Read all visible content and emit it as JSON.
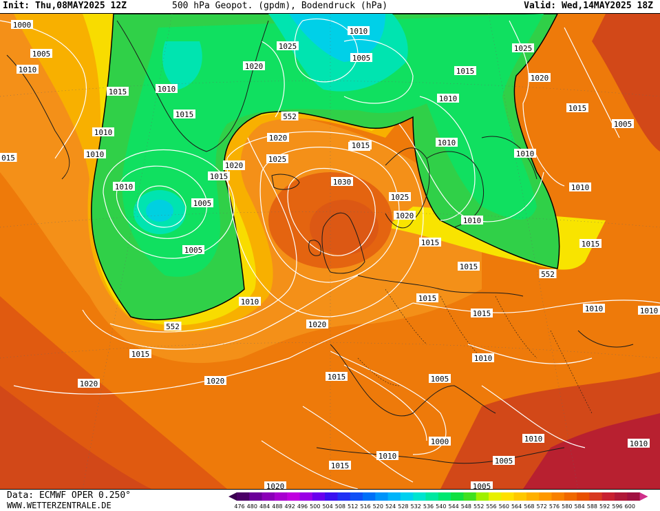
{
  "header": {
    "init": "Init: Thu,08MAY2025 12Z",
    "title": "500 hPa Geopot. (gpdm), Bodendruck (hPa)",
    "valid": "Valid: Wed,14MAY2025 18Z"
  },
  "footer": {
    "data_source": "Data: ECMWF OPER 0.250°",
    "website": "WWW.WETTERZENTRALE.DE"
  },
  "legend": {
    "values": [
      "476",
      "480",
      "484",
      "488",
      "492",
      "496",
      "500",
      "504",
      "508",
      "512",
      "516",
      "520",
      "524",
      "528",
      "532",
      "536",
      "540",
      "544",
      "548",
      "552",
      "556",
      "560",
      "564",
      "568",
      "572",
      "576",
      "580",
      "584",
      "588",
      "592",
      "596",
      "600"
    ],
    "colors": [
      "#4b0066",
      "#6a0099",
      "#8a00b8",
      "#a800d0",
      "#c000e0",
      "#9a00e6",
      "#6a00ee",
      "#3a10f0",
      "#2030f4",
      "#1050f6",
      "#0070f8",
      "#0094fa",
      "#00b4fa",
      "#00d0f0",
      "#00e4d0",
      "#00e8a0",
      "#00e870",
      "#10e040",
      "#40e020",
      "#a0f000",
      "#e8f000",
      "#ffe000",
      "#ffc800",
      "#ffb000",
      "#ff9800",
      "#f88000",
      "#f06800",
      "#e85000",
      "#d83820",
      "#c82030",
      "#b01838",
      "#a01040"
    ]
  },
  "map": {
    "reference_contour": "552",
    "isobar_labels": [
      "1000",
      "1005",
      "1010",
      "1015",
      "1020",
      "1025",
      "1030"
    ]
  },
  "labels": [
    {
      "text": "1000",
      "id": "a"
    },
    {
      "text": "1005",
      "id": "b"
    },
    {
      "text": "1010",
      "id": "c"
    },
    {
      "text": "1015",
      "id": "d"
    },
    {
      "text": "1010",
      "id": "e"
    },
    {
      "text": "1010",
      "id": "f"
    },
    {
      "text": "015",
      "id": "g"
    },
    {
      "text": "1010",
      "id": "h"
    },
    {
      "text": "1005",
      "id": "i"
    },
    {
      "text": "1005",
      "id": "j"
    },
    {
      "text": "1010",
      "id": "k"
    },
    {
      "text": "1015",
      "id": "l"
    },
    {
      "text": "1010",
      "id": "m"
    },
    {
      "text": "1015",
      "id": "n"
    },
    {
      "text": "1020",
      "id": "o"
    },
    {
      "text": "1020",
      "id": "p"
    },
    {
      "text": "1020",
      "id": "q"
    },
    {
      "text": "1025",
      "id": "r"
    },
    {
      "text": "1020",
      "id": "s"
    },
    {
      "text": "1020",
      "id": "t"
    },
    {
      "text": "1025",
      "id": "u"
    },
    {
      "text": "1015",
      "id": "v"
    },
    {
      "text": "1030",
      "id": "w"
    },
    {
      "text": "1025",
      "id": "x"
    },
    {
      "text": "1020",
      "id": "y"
    },
    {
      "text": "1010",
      "id": "z"
    },
    {
      "text": "1005",
      "id": "aa"
    },
    {
      "text": "1015",
      "id": "ab"
    },
    {
      "text": "1025",
      "id": "ac"
    },
    {
      "text": "1020",
      "id": "ad"
    },
    {
      "text": "1010",
      "id": "ae"
    },
    {
      "text": "1010",
      "id": "af"
    },
    {
      "text": "1015",
      "id": "ag"
    },
    {
      "text": "1005",
      "id": "ah"
    },
    {
      "text": "1010",
      "id": "ai"
    },
    {
      "text": "1010",
      "id": "aj"
    },
    {
      "text": "1010",
      "id": "ak"
    },
    {
      "text": "1015",
      "id": "al"
    },
    {
      "text": "1015",
      "id": "am"
    },
    {
      "text": "1015",
      "id": "an"
    },
    {
      "text": "1015",
      "id": "ao"
    },
    {
      "text": "1015",
      "id": "ap"
    },
    {
      "text": "1010",
      "id": "aq"
    },
    {
      "text": "1010",
      "id": "ar"
    },
    {
      "text": "1010",
      "id": "as"
    },
    {
      "text": "1015",
      "id": "at"
    },
    {
      "text": "1005",
      "id": "au"
    },
    {
      "text": "1000",
      "id": "av"
    },
    {
      "text": "1010",
      "id": "aw"
    },
    {
      "text": "1015",
      "id": "ax"
    },
    {
      "text": "1010",
      "id": "ay"
    },
    {
      "text": "1005",
      "id": "az"
    },
    {
      "text": "1010",
      "id": "ba"
    },
    {
      "text": "1020",
      "id": "bb"
    },
    {
      "text": "1015",
      "id": "bc"
    },
    {
      "text": "1020",
      "id": "bd"
    },
    {
      "text": "1020",
      "id": "be"
    },
    {
      "text": "552",
      "id": "bf"
    },
    {
      "text": "552",
      "id": "bg"
    },
    {
      "text": "552",
      "id": "bh"
    },
    {
      "text": "1005",
      "id": "bi"
    },
    {
      "text": "1020",
      "id": "bj"
    }
  ]
}
